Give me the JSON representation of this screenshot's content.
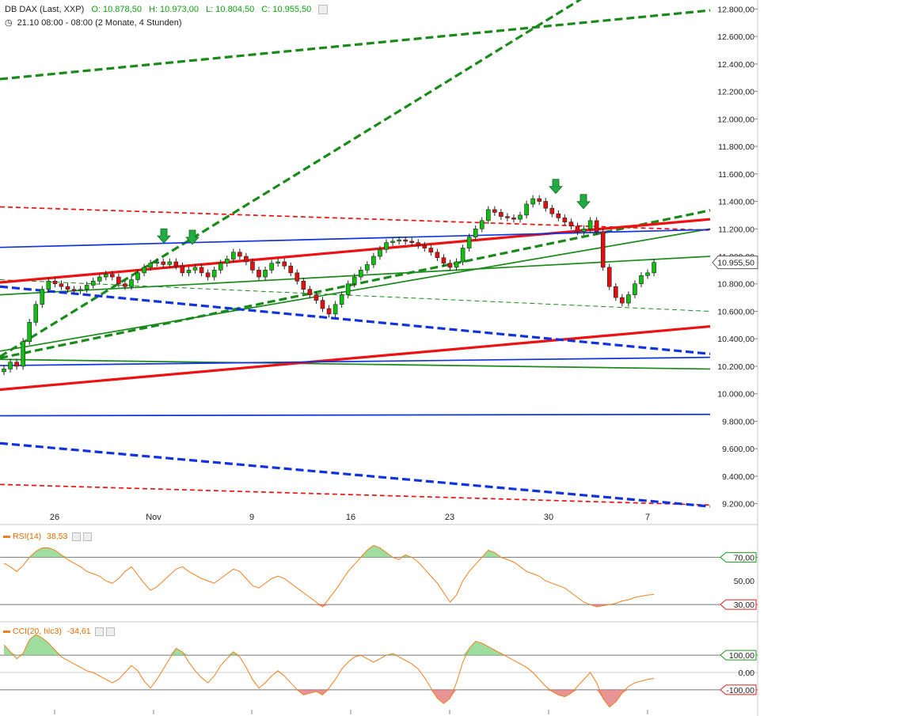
{
  "header": {
    "symbol": "DB DAX (Last, XXP)",
    "open": "O: 10.878,50",
    "high": "H: 10.973,00",
    "low": "L: 10.804,50",
    "close": "C: 10.955,50",
    "range": "21.10 08:00 - 08:00 (2 Monate, 4 Stunden)"
  },
  "price_label": "10.955,50",
  "rsi": {
    "title": "RSI(14)",
    "value": "38,53",
    "upper_label": "70,00",
    "mid_label": "50,00",
    "lower_label": "30,00"
  },
  "cci": {
    "title": "CCI(20, hlc3)",
    "value": "-34,61",
    "upper_label": "100,00",
    "mid_label": "0,00",
    "lower_label": "-100,00"
  },
  "colors": {
    "up": "#10c010",
    "down": "#e01010",
    "green_line": "#1a8a1a",
    "red_line": "#ee1111",
    "blue_line": "#1133dd",
    "osc": "#f08020"
  },
  "chart_data": {
    "type": "candlestick",
    "ylim": [
      9100,
      12900
    ],
    "yticks": [
      12800,
      12600,
      12400,
      12200,
      12000,
      11800,
      11600,
      11400,
      11200,
      11000,
      10800,
      10600,
      10400,
      10200,
      10000,
      9800,
      9600,
      9400,
      9200
    ],
    "ytick_labels": [
      "12.800,00",
      "12.600,00",
      "12.400,00",
      "12.200,00",
      "12.000,00",
      "11.800,00",
      "11.600,00",
      "11.400,00",
      "11.200,00",
      "11.000,00",
      "10.800,00",
      "10.600,00",
      "10.400,00",
      "10.200,00",
      "10.000,00",
      "9.800,00",
      "9.600,00",
      "9.400,00",
      "9.200,00"
    ],
    "x_ticks": [
      "26",
      "Nov",
      "9",
      "16",
      "23",
      "30",
      "7"
    ],
    "close_series": [
      10180,
      10230,
      10200,
      10380,
      10520,
      10650,
      10760,
      10820,
      10800,
      10780,
      10760,
      10750,
      10760,
      10790,
      10820,
      10850,
      10870,
      10850,
      10800,
      10780,
      10830,
      10880,
      10920,
      10950,
      10960,
      10940,
      10960,
      10930,
      10880,
      10900,
      10920,
      10880,
      10850,
      10900,
      10950,
      10980,
      11030,
      11000,
      10960,
      10900,
      10850,
      10900,
      10950,
      10960,
      10930,
      10880,
      10820,
      10760,
      10720,
      10680,
      10620,
      10580,
      10650,
      10720,
      10800,
      10850,
      10900,
      10940,
      11000,
      11050,
      11100,
      11110,
      11120,
      11110,
      11100,
      11080,
      11060,
      11030,
      10990,
      10950,
      10920,
      10960,
      11060,
      11140,
      11200,
      11260,
      11340,
      11320,
      11290,
      11280,
      11270,
      11300,
      11380,
      11420,
      11400,
      11350,
      11310,
      11280,
      11250,
      11220,
      11180,
      11200,
      11260,
      11180,
      10920,
      10780,
      10700,
      10660,
      10720,
      10800,
      10860,
      10880,
      10956
    ],
    "rsi_values": [
      65,
      62,
      58,
      63,
      70,
      75,
      78,
      78,
      76,
      72,
      68,
      65,
      62,
      58,
      56,
      54,
      50,
      48,
      52,
      58,
      62,
      55,
      48,
      42,
      45,
      50,
      55,
      60,
      62,
      58,
      55,
      52,
      50,
      48,
      52,
      56,
      60,
      58,
      52,
      46,
      44,
      48,
      52,
      54,
      52,
      48,
      44,
      40,
      36,
      32,
      28,
      35,
      42,
      50,
      58,
      64,
      70,
      76,
      80,
      78,
      74,
      70,
      68,
      72,
      70,
      66,
      60,
      54,
      48,
      40,
      32,
      38,
      50,
      58,
      64,
      70,
      76,
      74,
      70,
      68,
      66,
      62,
      58,
      56,
      54,
      50,
      48,
      46,
      44,
      40,
      36,
      32,
      30,
      28,
      29,
      30,
      31,
      33,
      34,
      36,
      37,
      38,
      38.53
    ],
    "cci_values": [
      160,
      120,
      80,
      110,
      190,
      220,
      200,
      170,
      130,
      90,
      70,
      50,
      30,
      10,
      0,
      -20,
      -40,
      -60,
      -40,
      0,
      40,
      10,
      -50,
      -90,
      -40,
      20,
      80,
      140,
      120,
      60,
      10,
      -30,
      -60,
      -20,
      40,
      80,
      120,
      90,
      30,
      -40,
      -90,
      -60,
      -20,
      10,
      -20,
      -60,
      -100,
      -130,
      -120,
      -110,
      -130,
      -90,
      -40,
      20,
      60,
      90,
      100,
      80,
      60,
      80,
      100,
      110,
      90,
      70,
      50,
      20,
      -30,
      -90,
      -150,
      -180,
      -150,
      -60,
      60,
      140,
      180,
      170,
      150,
      130,
      110,
      90,
      70,
      50,
      30,
      0,
      -40,
      -80,
      -110,
      -130,
      -140,
      -120,
      -80,
      -40,
      0,
      -60,
      -150,
      -200,
      -170,
      -120,
      -80,
      -60,
      -50,
      -40,
      -34.61
    ],
    "trend_lines": [
      {
        "color": "green",
        "style": "dash-thick",
        "y_start": 12290,
        "y_end": 12790
      },
      {
        "color": "green",
        "style": "dash-thick",
        "y_start": 10270,
        "y_end": 13450
      },
      {
        "color": "green",
        "style": "dash-thick",
        "y_start": 10260,
        "y_end": 11335
      },
      {
        "color": "green",
        "style": "solid",
        "y_start": 10720,
        "y_end": 11000
      },
      {
        "color": "green",
        "style": "solid",
        "y_start": 10310,
        "y_end": 11200
      },
      {
        "color": "green",
        "style": "solid",
        "y_start": 10250,
        "y_end": 10180
      },
      {
        "color": "green",
        "style": "dash-thin",
        "y_start": 10830,
        "y_end": 10600
      },
      {
        "color": "red",
        "style": "solid-thick",
        "y_start": 10810,
        "y_end": 11270
      },
      {
        "color": "red",
        "style": "solid-thick",
        "y_start": 10030,
        "y_end": 10490
      },
      {
        "color": "red",
        "style": "dash",
        "y_start": 11360,
        "y_end": 11190
      },
      {
        "color": "red",
        "style": "dash",
        "y_start": 9340,
        "y_end": 9190
      },
      {
        "color": "blue",
        "style": "solid",
        "y_start": 11065,
        "y_end": 11195
      },
      {
        "color": "blue",
        "style": "solid",
        "y_start": 10205,
        "y_end": 10265
      },
      {
        "color": "blue",
        "style": "solid",
        "y_start": 9840,
        "y_end": 9850
      },
      {
        "color": "blue",
        "style": "dash-thick",
        "y_start": 10780,
        "y_end": 10290
      },
      {
        "color": "blue",
        "style": "dash-thick",
        "y_start": 9640,
        "y_end": 9180
      }
    ]
  }
}
